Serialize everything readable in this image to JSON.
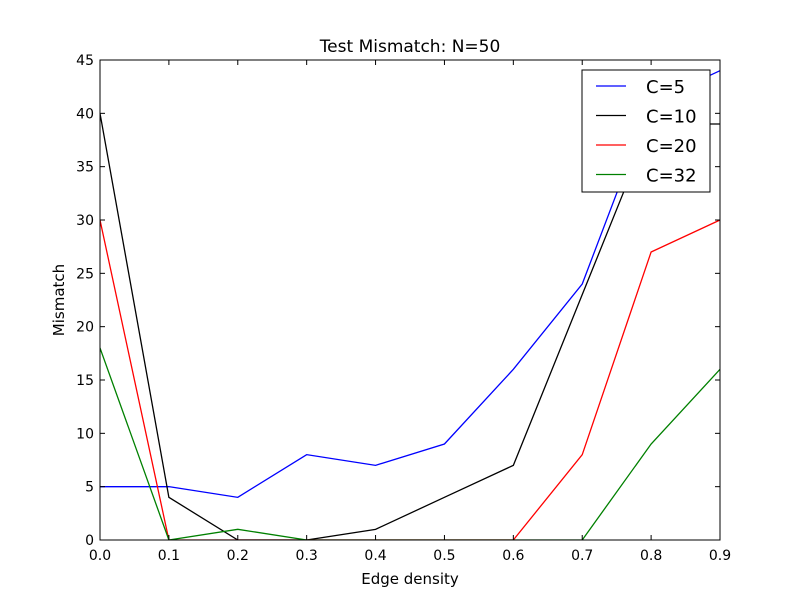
{
  "chart_data": {
    "type": "line",
    "title": "Test Mismatch: N=50",
    "xlabel": "Edge density",
    "ylabel": "Mismatch",
    "xlim": [
      0.0,
      0.9
    ],
    "ylim": [
      0,
      45
    ],
    "xticks": [
      "0.0",
      "0.1",
      "0.2",
      "0.3",
      "0.4",
      "0.5",
      "0.6",
      "0.7",
      "0.8",
      "0.9"
    ],
    "yticks": [
      "0",
      "5",
      "10",
      "15",
      "20",
      "25",
      "30",
      "35",
      "40",
      "45"
    ],
    "x": [
      0.0,
      0.1,
      0.2,
      0.3,
      0.4,
      0.5,
      0.6,
      0.7,
      0.8,
      0.9
    ],
    "grid": false,
    "legend_position": "top-right",
    "series": [
      {
        "name": "C=5",
        "color": "#0000ff",
        "values": [
          5,
          5,
          4,
          8,
          7,
          9,
          16,
          24,
          41,
          44
        ]
      },
      {
        "name": "C=10",
        "color": "#000000",
        "values": [
          40,
          4,
          0,
          0,
          1,
          4,
          7,
          23,
          39,
          39
        ]
      },
      {
        "name": "C=20",
        "color": "#ff0000",
        "values": [
          30,
          0,
          0,
          0,
          0,
          0,
          0,
          8,
          27,
          30
        ]
      },
      {
        "name": "C=32",
        "color": "#008000",
        "values": [
          18,
          0,
          1,
          0,
          0,
          0,
          0,
          0,
          9,
          16
        ]
      }
    ]
  }
}
